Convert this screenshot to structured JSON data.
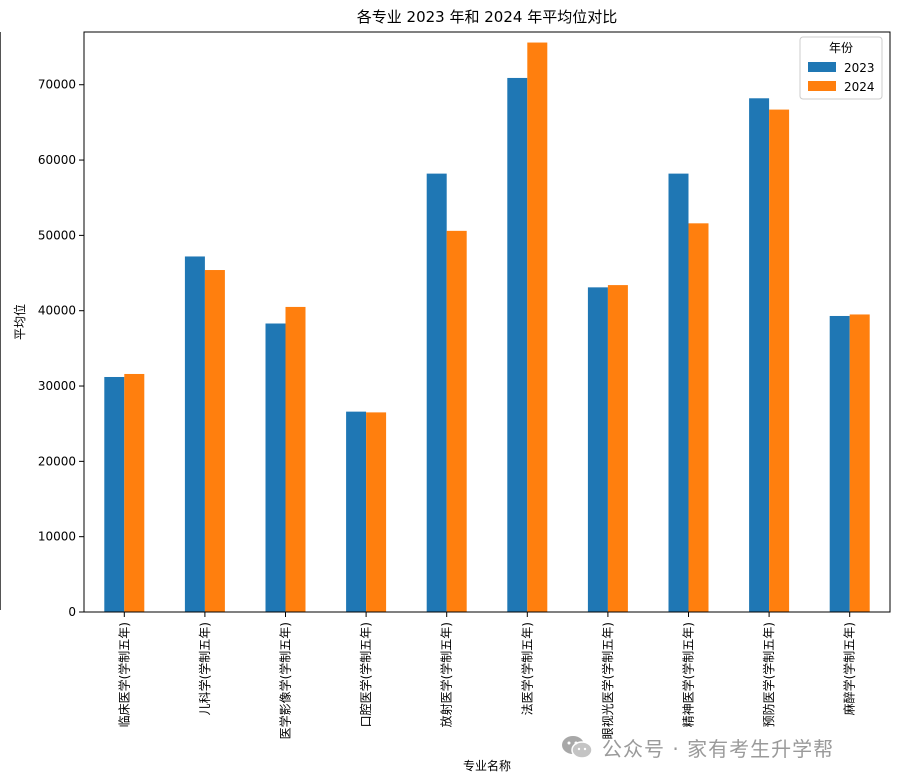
{
  "chart_data": {
    "type": "bar",
    "title": "各专业 2023 年和 2024 年平均位对比",
    "xlabel": "专业名称",
    "ylabel": "平均位",
    "ylim": [
      0,
      77000
    ],
    "yticks": [
      0,
      10000,
      20000,
      30000,
      40000,
      50000,
      60000,
      70000
    ],
    "categories": [
      "临床医学(学制五年)",
      "儿科学(学制五年)",
      "医学影像学(学制五年)",
      "口腔医学(学制五年)",
      "放射医学(学制五年)",
      "法医学(学制五年)",
      "眼视光医学(学制五年)",
      "精神医学(学制五年)",
      "预防医学(学制五年)",
      "麻醉学(学制五年)"
    ],
    "series": [
      {
        "name": "2023",
        "color": "#1f77b4",
        "values": [
          31200,
          47200,
          38300,
          26600,
          58200,
          70900,
          43100,
          58200,
          68200,
          39300
        ]
      },
      {
        "name": "2024",
        "color": "#ff7f0e",
        "values": [
          31600,
          45400,
          40500,
          26500,
          50600,
          75600,
          43400,
          51600,
          66700,
          39500
        ]
      }
    ],
    "legend": {
      "title": "年份",
      "position": "top-right"
    },
    "grid": false
  },
  "watermark": {
    "text": "公众号 · 家有考生升学帮",
    "icon": "wechat-icon"
  }
}
